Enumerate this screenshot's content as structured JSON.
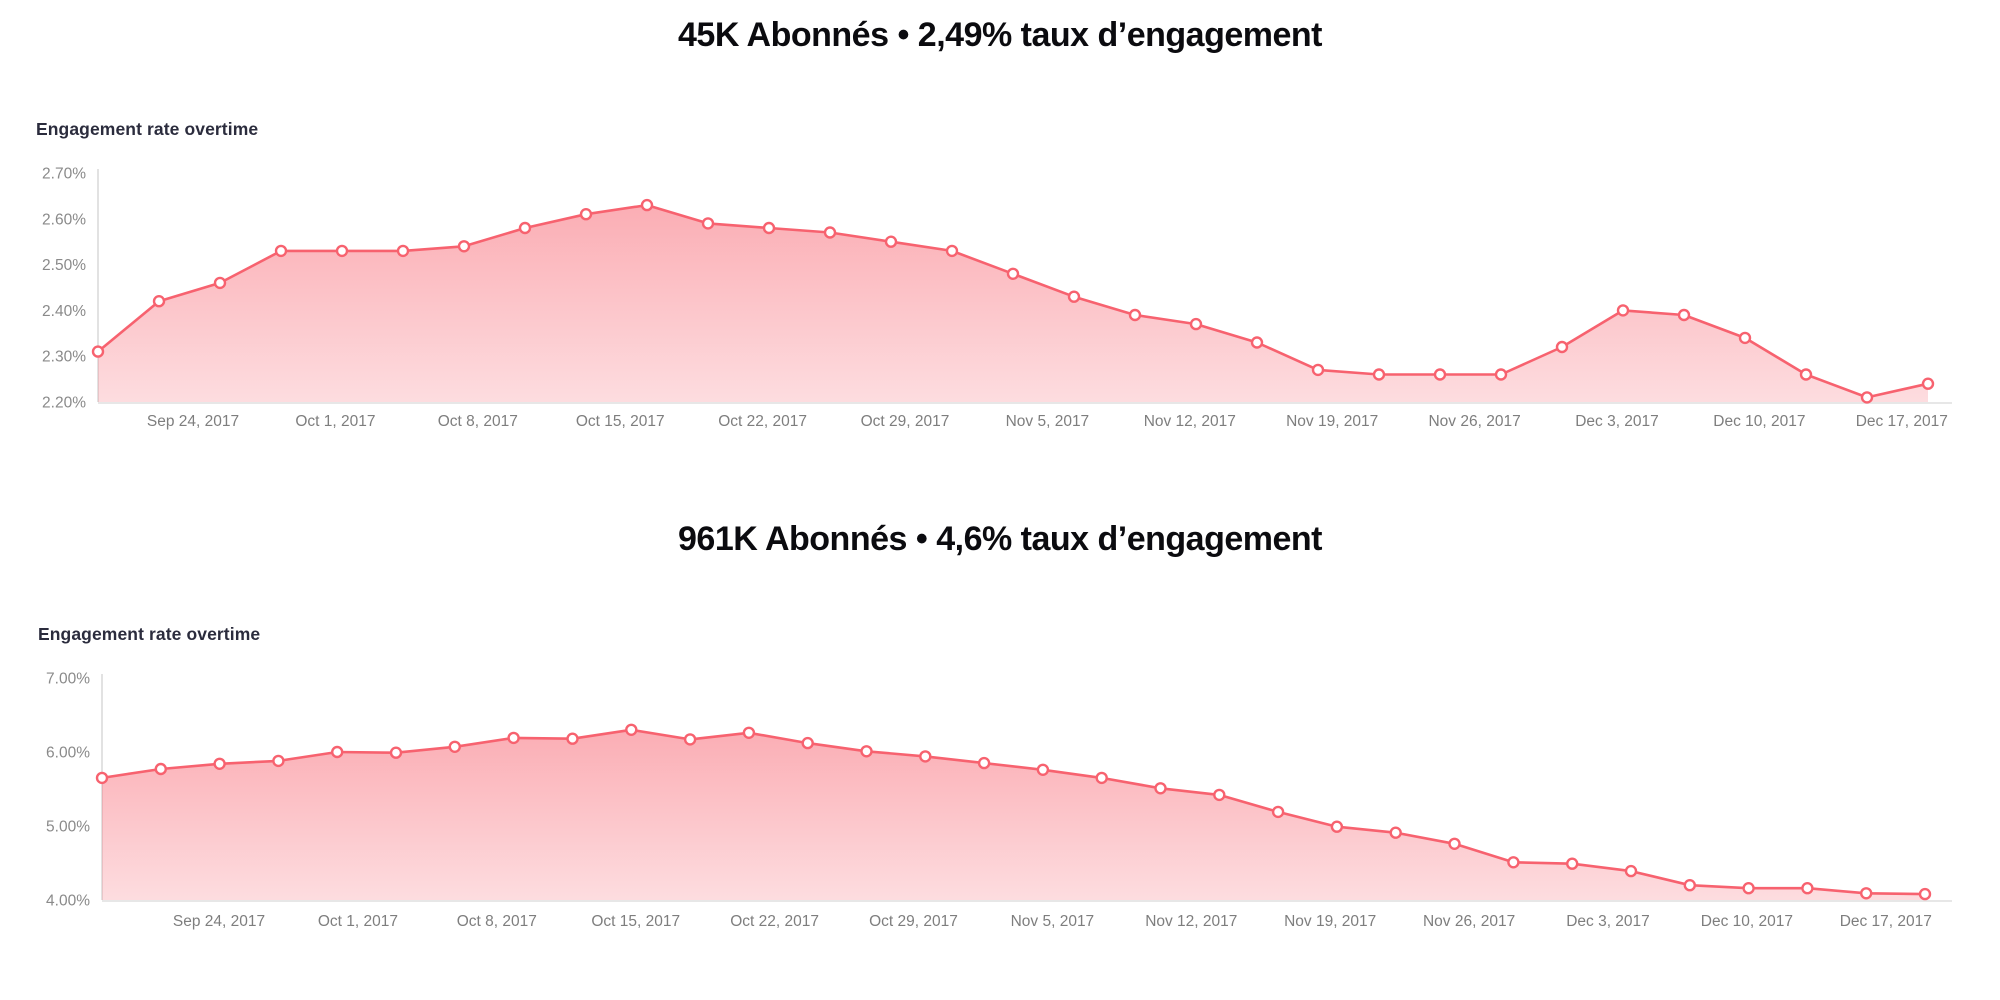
{
  "accent_color": "#f7626f",
  "chart_data": [
    {
      "type": "area",
      "title": "45K Abonnés • 2,49% taux d’engagement",
      "subtitle": "Engagement rate overtime",
      "line_color": "#f7626f",
      "fill_color": "#f7626f",
      "grid": "off",
      "legend": "none",
      "ylim": [
        2.2,
        2.7
      ],
      "y_tick_labels": [
        "2.70%",
        "2.60%",
        "2.50%",
        "2.40%",
        "2.30%",
        "2.20%"
      ],
      "x_tick_labels": [
        "Sep 24, 2017",
        "Oct 1, 2017",
        "Oct 8, 2017",
        "Oct 15, 2017",
        "Oct 22, 2017",
        "Oct 29, 2017",
        "Nov 5, 2017",
        "Nov 12, 2017",
        "Nov 19, 2017",
        "Nov 26, 2017",
        "Dec 3, 2017",
        "Dec 10, 2017",
        "Dec 17, 2017"
      ],
      "x_unit": "date, one point every ~3 days",
      "values": [
        2.31,
        2.42,
        2.46,
        2.53,
        2.53,
        2.53,
        2.54,
        2.58,
        2.61,
        2.63,
        2.59,
        2.58,
        2.57,
        2.55,
        2.53,
        2.48,
        2.43,
        2.39,
        2.37,
        2.33,
        2.27,
        2.26,
        2.26,
        2.26,
        2.32,
        2.4,
        2.39,
        2.34,
        2.26,
        2.21,
        2.24
      ]
    },
    {
      "type": "area",
      "title": "961K Abonnés • 4,6% taux d’engagement",
      "subtitle": "Engagement rate overtime",
      "line_color": "#f7626f",
      "fill_color": "#f7626f",
      "grid": "off",
      "legend": "none",
      "ylim": [
        4.0,
        7.0
      ],
      "y_tick_labels": [
        "7.00%",
        "6.00%",
        "5.00%",
        "4.00%"
      ],
      "x_tick_labels": [
        "Sep 24, 2017",
        "Oct 1, 2017",
        "Oct 8, 2017",
        "Oct 15, 2017",
        "Oct 22, 2017",
        "Oct 29, 2017",
        "Nov 5, 2017",
        "Nov 12, 2017",
        "Nov 19, 2017",
        "Nov 26, 2017",
        "Dec 3, 2017",
        "Dec 10, 2017",
        "Dec 17, 2017"
      ],
      "x_unit": "date, one point every ~3 days",
      "values": [
        5.65,
        5.77,
        5.84,
        5.88,
        6.0,
        5.99,
        6.07,
        6.19,
        6.18,
        6.3,
        6.17,
        6.26,
        6.12,
        6.01,
        5.94,
        5.85,
        5.76,
        5.65,
        5.51,
        5.42,
        5.19,
        4.99,
        4.91,
        4.76,
        4.51,
        4.49,
        4.39,
        4.2,
        4.16,
        4.16,
        4.09,
        4.08
      ]
    }
  ]
}
